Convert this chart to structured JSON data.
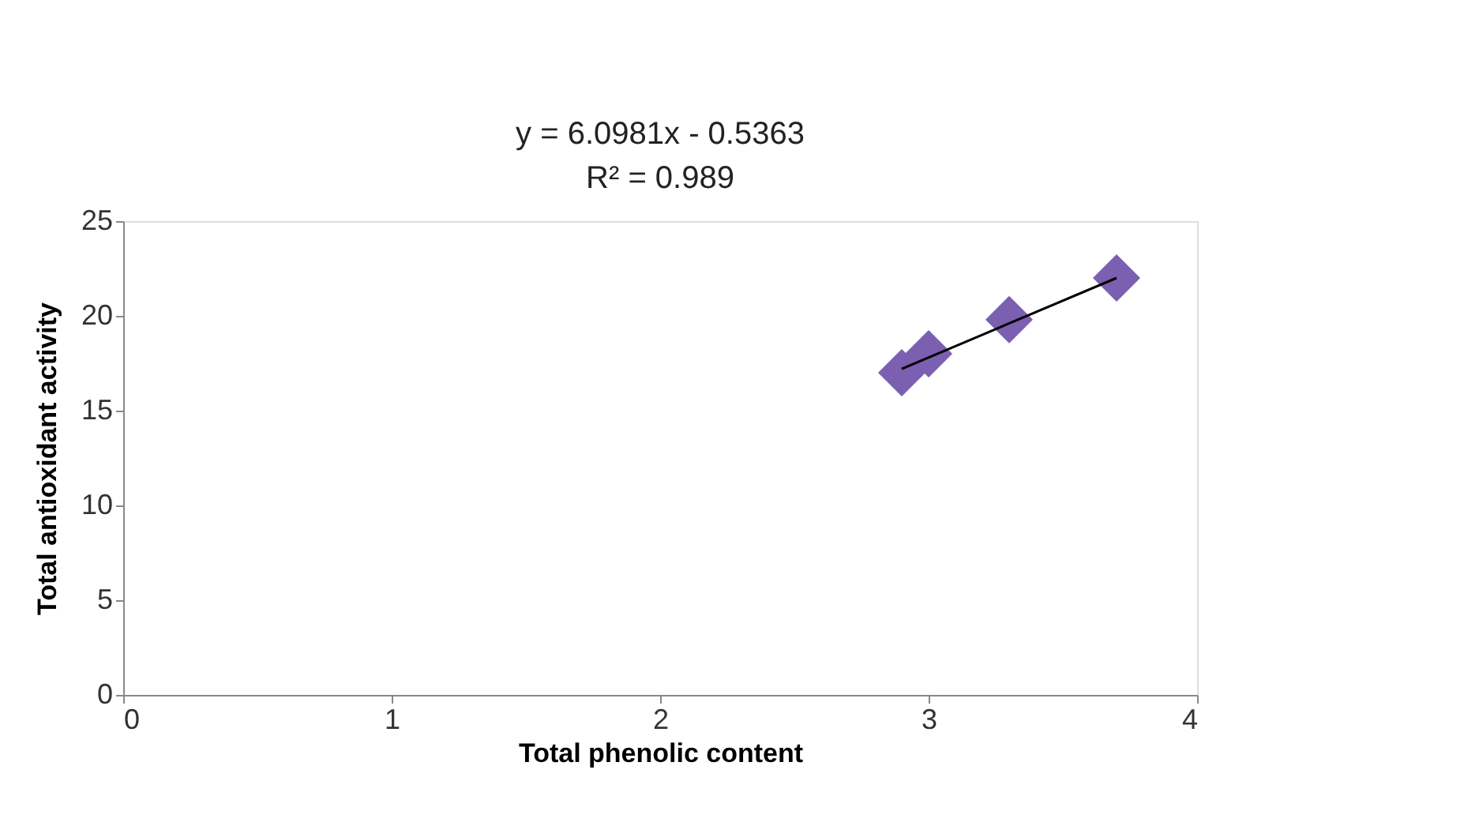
{
  "chart_data": {
    "type": "scatter",
    "xlabel": "Total phenolic content",
    "ylabel": "Total antioxidant activity",
    "annotations": [
      "y = 6.0981x - 0.5363",
      "R² = 0.989"
    ],
    "series": [
      {
        "color": "#7b5fb0",
        "marker": "diamond",
        "x": [
          2.9,
          3.0,
          3.3,
          3.7
        ],
        "values": [
          17,
          18,
          19.8,
          22
        ]
      },
      {
        "type": "line",
        "color": "#000000",
        "line_style": "solid",
        "marker": "none",
        "x": [
          2.9,
          3.7
        ],
        "values": [
          17.2,
          22
        ]
      }
    ],
    "xlim": [
      0,
      4
    ],
    "xticks": [
      0,
      1,
      2,
      3,
      4
    ],
    "ylim": [
      0,
      25
    ],
    "yticks": [
      0,
      5,
      10,
      15,
      20,
      25
    ],
    "grid": false
  }
}
